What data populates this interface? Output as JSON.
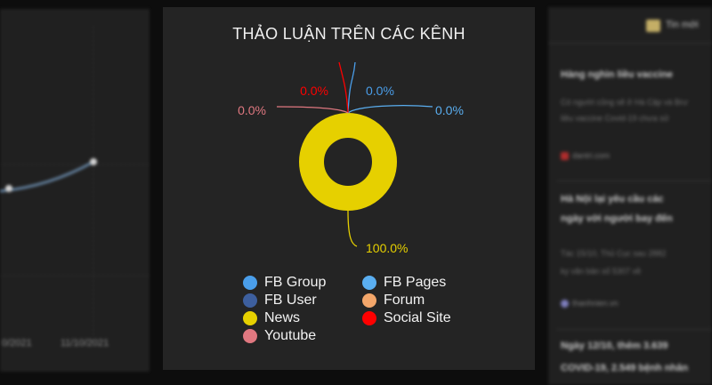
{
  "chart_data": {
    "type": "pie",
    "title": "THẢO LUẬN TRÊN CÁC KÊNH",
    "categories": [
      "FB Group",
      "FB Pages",
      "FB User",
      "Forum",
      "News",
      "Social Site",
      "Youtube"
    ],
    "values": [
      0.0,
      0.0,
      0.0,
      0.0,
      100.0,
      0.0,
      0.0
    ],
    "labels": [
      "0.0%",
      "0.0%",
      "0.0%",
      "0.0%",
      "100.0%",
      "0.0%",
      "0.0%"
    ],
    "colors": [
      "#4a9eea",
      "#5aaef0",
      "#3d5f9e",
      "#f3a66a",
      "#e6d000",
      "#ff0000",
      "#e07880"
    ],
    "donut": true,
    "legend_position": "bottom"
  },
  "left_panel": {
    "x_ticks": [
      "0/2021",
      "11/10/2021"
    ],
    "line_color": "#6e8fb0"
  },
  "right_panel": {
    "header_label": "Tin mới",
    "items": [
      {
        "title": "Hàng nghìn liều vaccine",
        "snippet_1": "Có người cũng sẽ ở Hà Cập và Brư",
        "snippet_2": "liều vaccine Covid-19 chưa sử",
        "source": "dantri.com"
      },
      {
        "title": "Hà Nội lại yêu cầu các",
        "title_2": "ngày với người bay đến",
        "snippet_1": "Tác 15/10, Thủ Cục sau 2882",
        "snippet_2": "ky văn bản số 5307 về",
        "source": "thanhnien.vn"
      },
      {
        "title": "Ngày 12/10, thêm 3.639",
        "title_2": "COVID-19, 2.549 bệnh nhân"
      }
    ]
  }
}
